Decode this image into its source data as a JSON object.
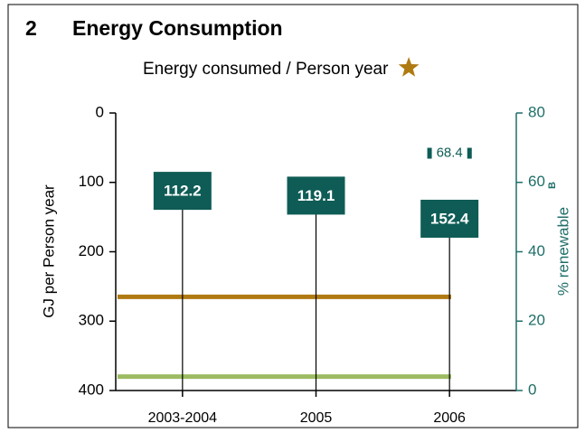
{
  "section_number": "2",
  "heading": "Energy Consumption",
  "chart_data": {
    "type": "stem",
    "title": "Energy consumed / Person year",
    "title_marker_color": "#b07a12",
    "categories": [
      "2003-2004",
      "2005",
      "2006"
    ],
    "series": [
      {
        "color": "#0e5c55",
        "values": [
          112.2,
          119.1,
          152.4
        ]
      },
      {
        "color": "#0e5c55",
        "axis": "y2",
        "values": [
          null,
          null,
          68.4
        ]
      }
    ],
    "ylabel": "GJ per Person year",
    "ylim": [
      0,
      400
    ],
    "yticks": [
      0,
      100,
      200,
      300,
      400
    ],
    "y_inverted": true,
    "y2label": "% renewable",
    "y2label_note": "B",
    "y2lim": [
      0,
      80
    ],
    "y2ticks": [
      0,
      20,
      40,
      60,
      80
    ],
    "y2_color": "#1f6e68",
    "reference_lines": [
      {
        "value": 265,
        "color": "#b07a12"
      },
      {
        "value": 380,
        "color": "#9dbb61"
      }
    ]
  }
}
